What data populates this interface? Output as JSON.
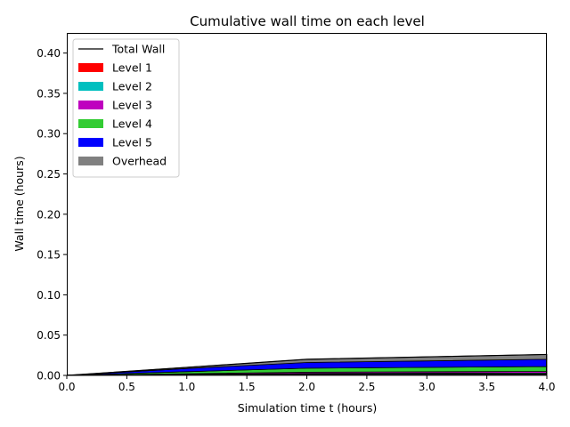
{
  "chart_data": {
    "type": "area",
    "title": "Cumulative wall time on each level",
    "xlabel": "Simulation time t (hours)",
    "ylabel": "Wall time (hours)",
    "xlim": [
      0.0,
      4.0
    ],
    "ylim": [
      0.0,
      0.425
    ],
    "xticks": [
      "0.0",
      "0.5",
      "1.0",
      "1.5",
      "2.0",
      "2.5",
      "3.0",
      "3.5",
      "4.0"
    ],
    "yticks": [
      "0.00",
      "0.05",
      "0.10",
      "0.15",
      "0.20",
      "0.25",
      "0.30",
      "0.35",
      "0.40"
    ],
    "x": [
      0.0,
      1.0,
      2.0,
      4.0
    ],
    "series": [
      {
        "name": "Level 1",
        "color": "#ff0000",
        "values": [
          0.0,
          0.0008,
          0.0015,
          0.0018
        ]
      },
      {
        "name": "Level 2",
        "color": "#00bfbf",
        "values": [
          0.0,
          0.0005,
          0.001,
          0.0012
        ]
      },
      {
        "name": "Level 3",
        "color": "#bf00bf",
        "values": [
          0.0,
          0.0008,
          0.0015,
          0.002
        ]
      },
      {
        "name": "Level 4",
        "color": "#33cc33",
        "values": [
          0.0,
          0.0025,
          0.005,
          0.006
        ]
      },
      {
        "name": "Level 5",
        "color": "#0000ff",
        "values": [
          0.0,
          0.004,
          0.007,
          0.009
        ]
      },
      {
        "name": "Overhead",
        "color": "#808080",
        "values": [
          0.0,
          0.0014,
          0.004,
          0.006
        ]
      }
    ],
    "total": {
      "name": "Total Wall",
      "color": "#000000",
      "values": [
        0.0,
        0.01,
        0.02,
        0.026
      ]
    },
    "legend_position": "upper-left",
    "grid": false
  }
}
